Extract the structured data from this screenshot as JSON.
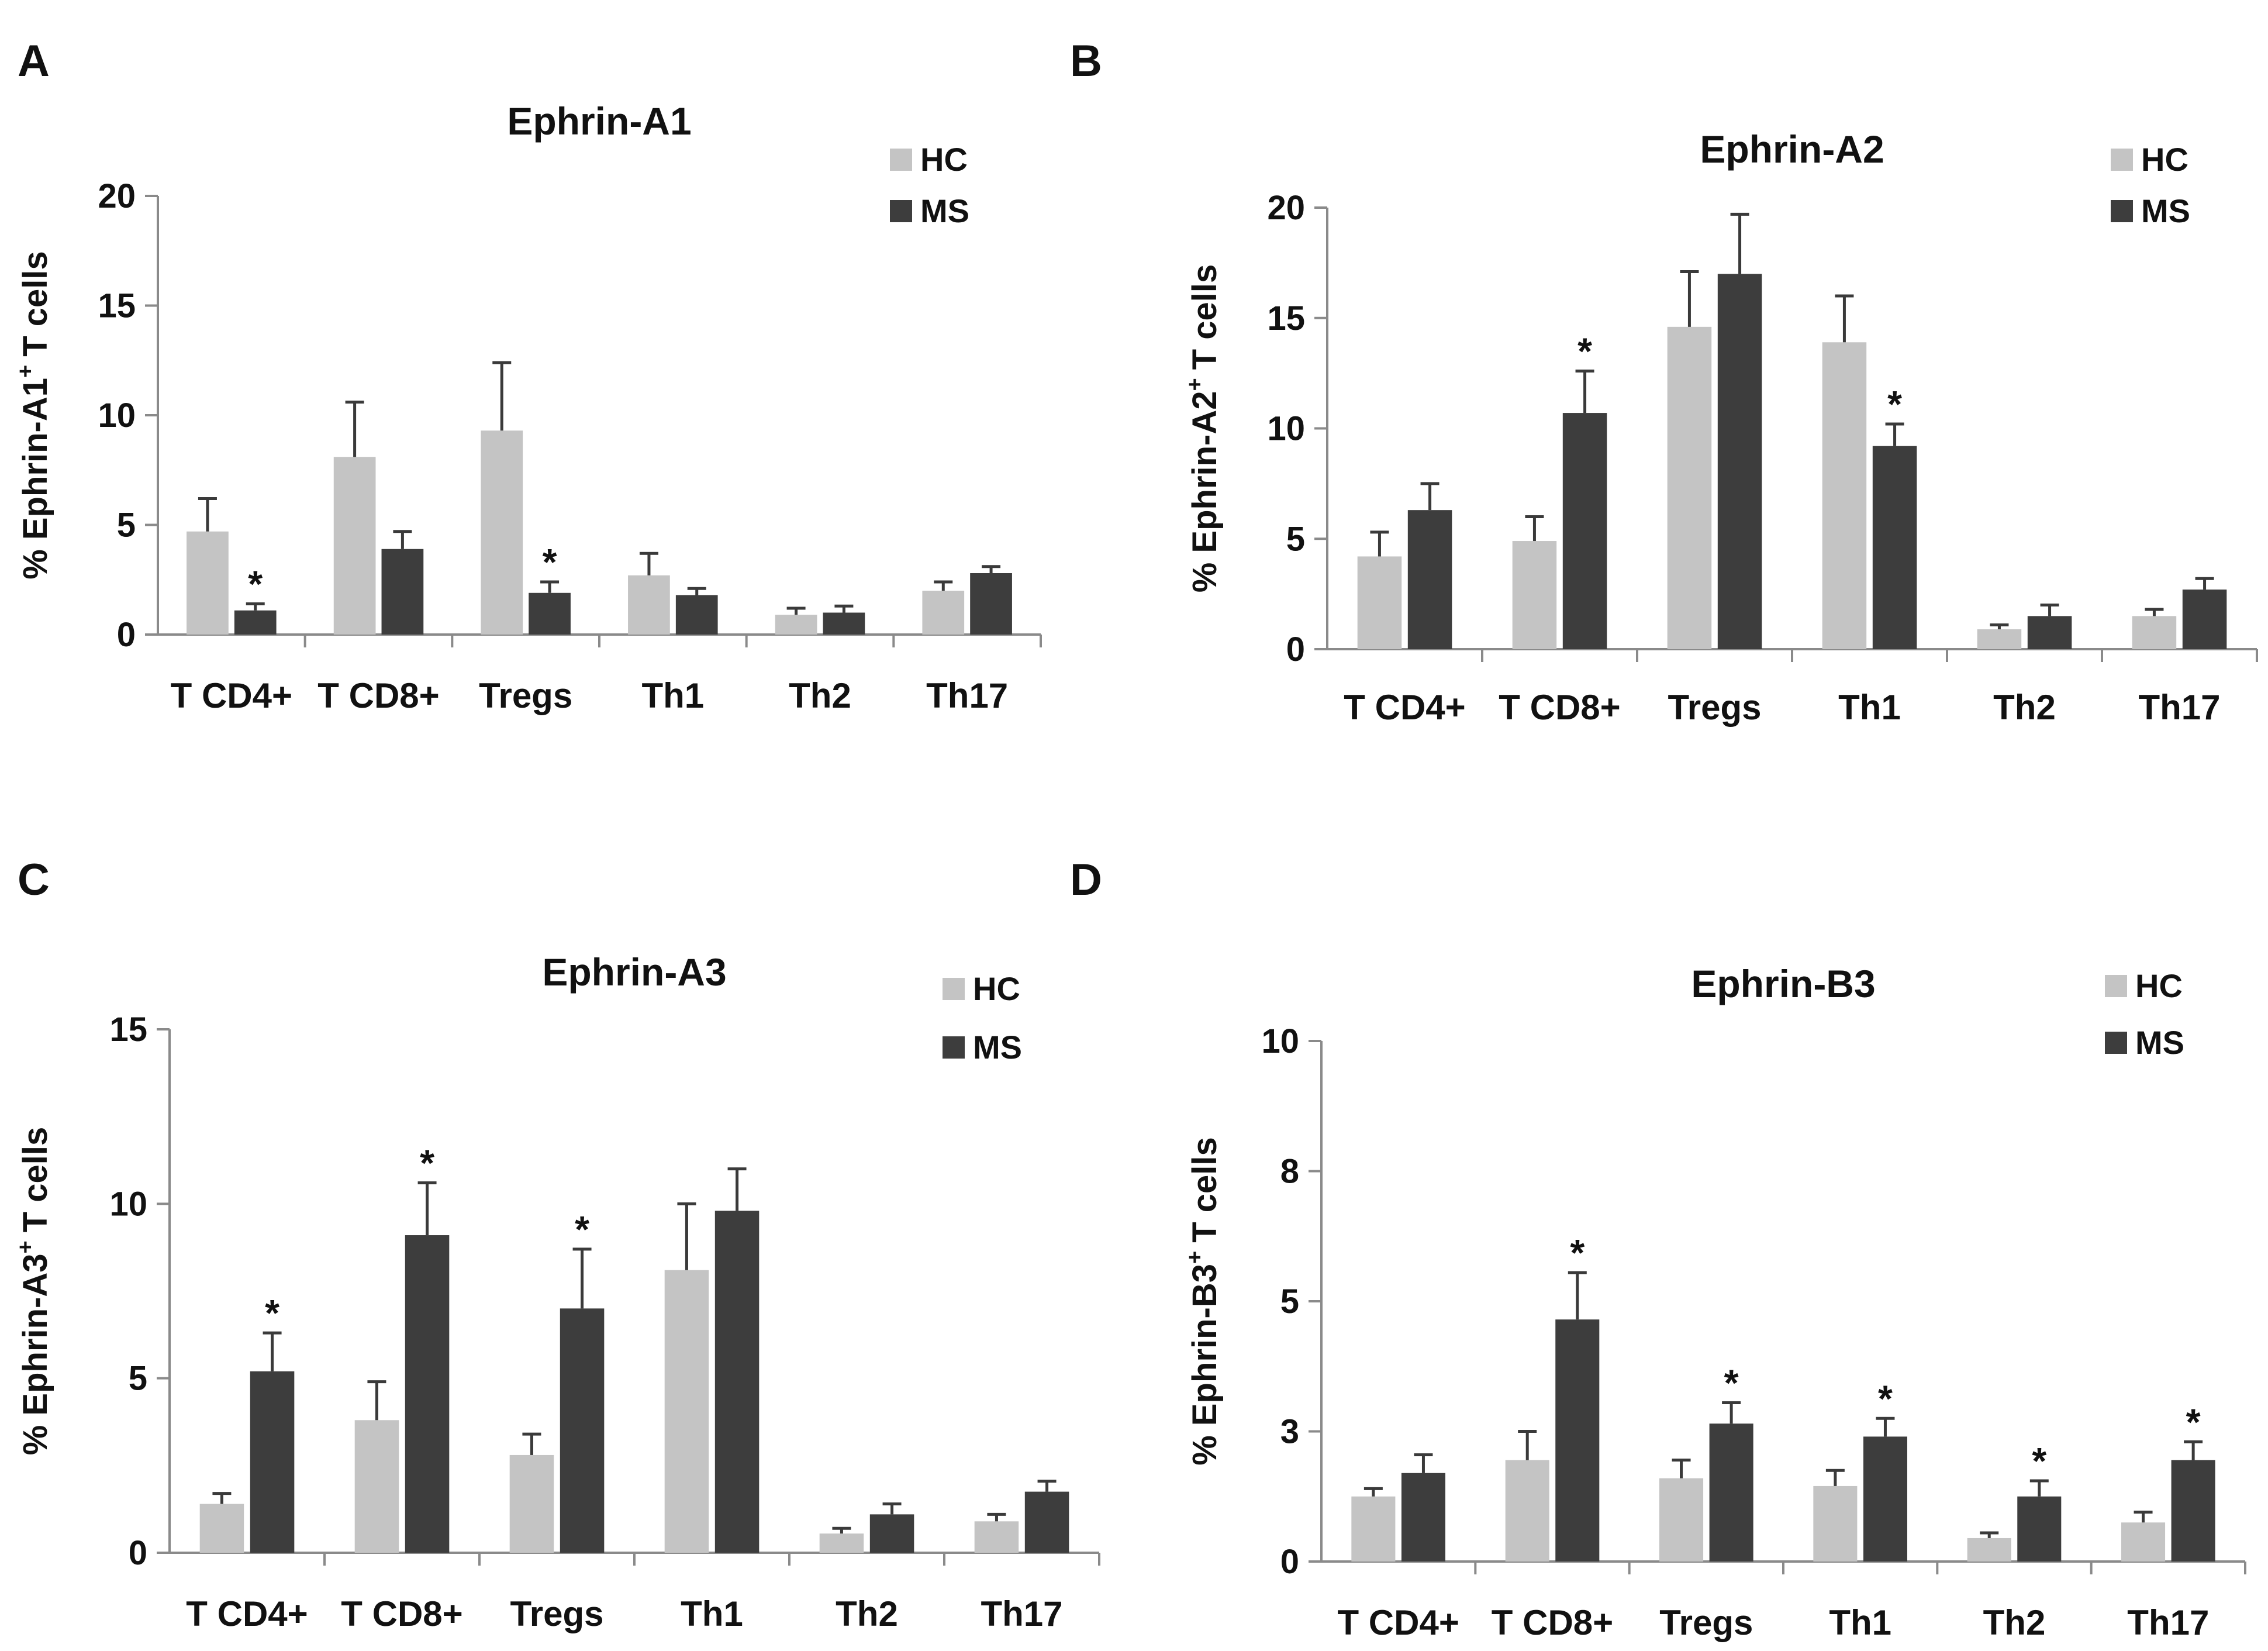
{
  "chart_data": [
    {
      "panel": "A",
      "type": "bar",
      "title": "Ephrin-A1",
      "ylabel": "% Ephrin-A1",
      "ylabel_sup": "+",
      "ylabel_suffix": "T cells",
      "ylim": [
        0,
        20
      ],
      "yticks": [
        0,
        5,
        10,
        15,
        20
      ],
      "ytick_labels": [
        "0",
        "5",
        "10",
        "15",
        "20"
      ],
      "categories": [
        "T CD4+",
        "T CD8+",
        "Tregs",
        "Th1",
        "Th2",
        "Th17"
      ],
      "series": [
        {
          "name": "HC",
          "color": "#c4c4c4",
          "values": [
            4.7,
            8.1,
            9.3,
            2.7,
            0.9,
            2.0
          ],
          "errors": [
            1.5,
            2.5,
            3.1,
            1.0,
            0.3,
            0.4
          ],
          "stars": [
            false,
            false,
            false,
            false,
            false,
            false
          ]
        },
        {
          "name": "MS",
          "color": "#3d3d3d",
          "values": [
            1.1,
            3.9,
            1.9,
            1.8,
            1.0,
            2.8
          ],
          "errors": [
            0.3,
            0.8,
            0.5,
            0.3,
            0.3,
            0.3
          ],
          "stars": [
            true,
            false,
            true,
            false,
            false,
            false
          ]
        }
      ],
      "star_label": "*",
      "legend": [
        "HC",
        "MS"
      ]
    },
    {
      "panel": "B",
      "type": "bar",
      "title": "Ephrin-A2",
      "ylabel": "% Ephrin-A2",
      "ylabel_sup": "+",
      "ylabel_suffix": "T cells",
      "ylim": [
        0,
        20
      ],
      "yticks": [
        0,
        5,
        10,
        15,
        20
      ],
      "ytick_labels": [
        "0",
        "5",
        "10",
        "15",
        "20"
      ],
      "categories": [
        "T CD4+",
        "T CD8+",
        "Tregs",
        "Th1",
        "Th2",
        "Th17"
      ],
      "series": [
        {
          "name": "HC",
          "color": "#c4c4c4",
          "values": [
            4.2,
            4.9,
            14.6,
            13.9,
            0.9,
            1.5
          ],
          "errors": [
            1.1,
            1.1,
            2.5,
            2.1,
            0.2,
            0.3
          ],
          "stars": [
            false,
            false,
            false,
            false,
            false,
            false
          ]
        },
        {
          "name": "MS",
          "color": "#3d3d3d",
          "values": [
            6.3,
            10.7,
            17.0,
            9.2,
            1.5,
            2.7
          ],
          "errors": [
            1.2,
            1.9,
            2.7,
            1.0,
            0.5,
            0.5
          ],
          "stars": [
            false,
            true,
            false,
            true,
            false,
            false
          ]
        }
      ],
      "star_label": "*",
      "legend": [
        "HC",
        "MS"
      ]
    },
    {
      "panel": "C",
      "type": "bar",
      "title": "Ephrin-A3",
      "ylabel": "% Ephrin-A3",
      "ylabel_sup": "+",
      "ylabel_suffix": "T cells",
      "ylim": [
        0,
        15
      ],
      "yticks": [
        0,
        5,
        10,
        15
      ],
      "ytick_labels": [
        "0",
        "5",
        "10",
        "15"
      ],
      "categories": [
        "T CD4+",
        "T CD8+",
        "Tregs",
        "Th1",
        "Th2",
        "Th17"
      ],
      "series": [
        {
          "name": "HC",
          "color": "#c4c4c4",
          "values": [
            1.4,
            3.8,
            2.8,
            8.1,
            0.55,
            0.9
          ],
          "errors": [
            0.3,
            1.1,
            0.6,
            1.9,
            0.15,
            0.2
          ],
          "stars": [
            false,
            false,
            false,
            false,
            false,
            false
          ]
        },
        {
          "name": "MS",
          "color": "#3d3d3d",
          "values": [
            5.2,
            9.1,
            7.0,
            9.8,
            1.1,
            1.75
          ],
          "errors": [
            1.1,
            1.5,
            1.7,
            1.2,
            0.3,
            0.3
          ],
          "stars": [
            true,
            true,
            true,
            false,
            false,
            false
          ]
        }
      ],
      "star_label": "*",
      "legend": [
        "HC",
        "MS"
      ]
    },
    {
      "panel": "D",
      "type": "bar",
      "title": "Ephrin-B3",
      "ylabel": "% Ephrin-B3",
      "ylabel_sup": "+",
      "ylabel_suffix": "T cells",
      "ylim": [
        0,
        10
      ],
      "yticks": [
        0,
        2.5,
        5,
        7.5,
        10
      ],
      "ytick_labels": [
        "0",
        "3",
        "5",
        "8",
        "10"
      ],
      "categories": [
        "T CD4+",
        "T CD8+",
        "Tregs",
        "Th1",
        "Th2",
        "Th17"
      ],
      "series": [
        {
          "name": "HC",
          "color": "#c4c4c4",
          "values": [
            1.25,
            1.95,
            1.6,
            1.45,
            0.45,
            0.75
          ],
          "errors": [
            0.15,
            0.55,
            0.35,
            0.3,
            0.1,
            0.2
          ],
          "stars": [
            false,
            false,
            false,
            false,
            false,
            false
          ]
        },
        {
          "name": "MS",
          "color": "#3d3d3d",
          "values": [
            1.7,
            4.65,
            2.65,
            2.4,
            1.25,
            1.95
          ],
          "errors": [
            0.35,
            0.9,
            0.4,
            0.35,
            0.3,
            0.35
          ],
          "stars": [
            false,
            true,
            true,
            true,
            true,
            true
          ]
        }
      ],
      "star_label": "*",
      "legend": [
        "HC",
        "MS"
      ]
    }
  ]
}
